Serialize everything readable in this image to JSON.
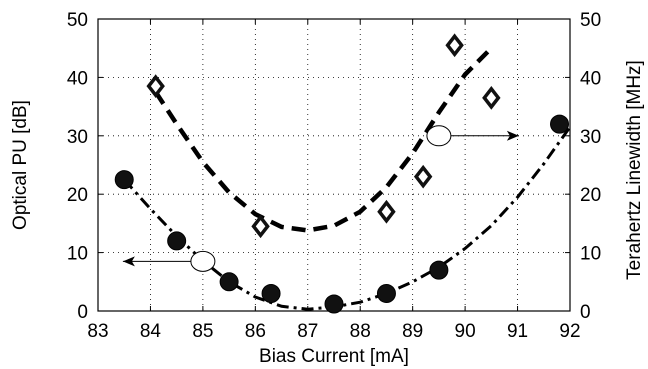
{
  "chart_data": {
    "type": "scatter",
    "xlabel": "Bias Current [mA]",
    "ylabel_left": "Optical PU [dB]",
    "ylabel_right": "Terahertz Linewidth [MHz]",
    "xlim": [
      83,
      92
    ],
    "ylim_left": [
      0,
      50
    ],
    "ylim_right": [
      0,
      50
    ],
    "x_ticks": [
      "83",
      "84",
      "85",
      "86",
      "87",
      "88",
      "89",
      "90",
      "91",
      "92"
    ],
    "y_ticks_left": [
      "0",
      "10",
      "20",
      "30",
      "40",
      "50"
    ],
    "y_ticks_right": [
      "0",
      "10",
      "20",
      "30",
      "40",
      "50"
    ],
    "grid": true,
    "series": [
      {
        "axis": "left",
        "marker": "filled-circle",
        "color": "#111111",
        "x": [
          83.5,
          84.5,
          85.5,
          86.3,
          87.5,
          88.5,
          89.5,
          91.8
        ],
        "y": [
          22.5,
          12,
          5,
          3,
          1.2,
          3,
          7,
          32
        ]
      },
      {
        "axis": "right",
        "marker": "open-diamond",
        "color": "#111111",
        "x": [
          84.1,
          86.1,
          88.5,
          89.2,
          89.8,
          90.5
        ],
        "y": [
          38.5,
          14.5,
          17,
          23,
          45.5,
          36.5
        ]
      }
    ],
    "fits": [
      {
        "axis": "left",
        "style": "dash-dot",
        "x": [
          83.5,
          84,
          84.5,
          85,
          85.5,
          86,
          86.5,
          87,
          87.5,
          88,
          88.5,
          89,
          89.5,
          90,
          90.5,
          91,
          91.5,
          92
        ],
        "y": [
          22.5,
          17.5,
          12.8,
          8.6,
          5.0,
          2.4,
          0.8,
          0.3,
          0.7,
          1.5,
          3.0,
          5.0,
          7.5,
          10.7,
          14.6,
          19.5,
          25.2,
          31.5
        ]
      },
      {
        "axis": "right",
        "style": "dashed",
        "x": [
          84.1,
          84.5,
          85,
          85.5,
          86,
          86.5,
          87,
          87.5,
          88,
          88.5,
          89,
          89.5,
          90,
          90.5
        ],
        "y": [
          37.5,
          32.0,
          25.5,
          20.3,
          16.6,
          14.4,
          13.8,
          14.6,
          17.0,
          21.2,
          27.0,
          34.0,
          40.5,
          45.0
        ]
      }
    ],
    "annotations": [
      {
        "type": "circle-arrow",
        "points_to": "left",
        "x": 85.0,
        "y": 8.5
      },
      {
        "type": "circle-arrow",
        "points_to": "right",
        "x": 89.5,
        "y": 30
      }
    ]
  }
}
